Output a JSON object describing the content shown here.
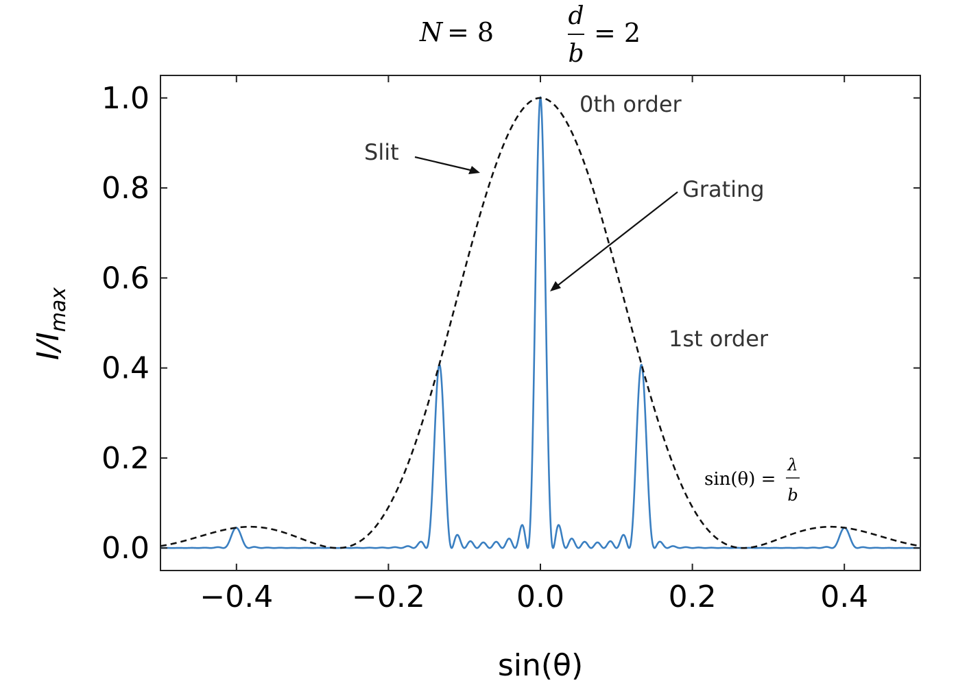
{
  "chart_data": {
    "type": "line",
    "header": {
      "n_label": "N",
      "n_equals": "= 8",
      "ratio_num": "d",
      "ratio_den": "b",
      "ratio_equals": "= 2"
    },
    "xlabel": "sin(θ)",
    "ylabel_main": "I/I",
    "ylabel_sub": "max",
    "xlim": [
      -0.5,
      0.5
    ],
    "ylim": [
      -0.05,
      1.05
    ],
    "xticks": [
      -0.4,
      -0.2,
      0.0,
      0.2,
      0.4
    ],
    "xtick_labels": [
      "−0.4",
      "−0.2",
      "0.0",
      "0.2",
      "0.4"
    ],
    "yticks": [
      0.0,
      0.2,
      0.4,
      0.6,
      0.8,
      1.0
    ],
    "ytick_labels": [
      "0.0",
      "0.2",
      "0.4",
      "0.6",
      "0.8",
      "1.0"
    ],
    "grid": false,
    "annotations": {
      "zeroth_order": "0th order",
      "first_order": "1st order",
      "slit": "Slit",
      "grating": "Grating",
      "formula_lhs": "sin(θ) =",
      "formula_num": "λ",
      "formula_den": "b"
    },
    "model": {
      "N": 8,
      "d_over_b": 2,
      "wavelength_over_slit": 0.267
    },
    "series": [
      {
        "key": "slit",
        "style": "dashed",
        "color": "#111111"
      },
      {
        "key": "grating",
        "style": "solid",
        "color": "#3a7fc1"
      }
    ]
  }
}
